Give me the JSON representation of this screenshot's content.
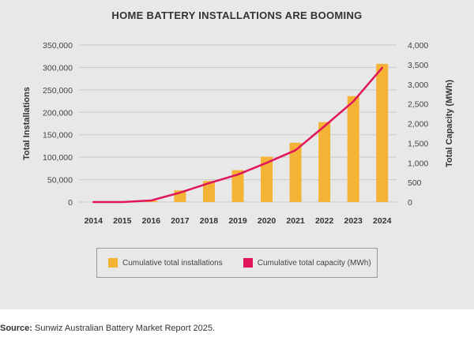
{
  "chart_data": {
    "type": "bar",
    "title": "HOME BATTERY INSTALLATIONS ARE BOOMING",
    "categories": [
      "2014",
      "2015",
      "2016",
      "2017",
      "2018",
      "2019",
      "2020",
      "2021",
      "2022",
      "2023",
      "2024"
    ],
    "ylabel": "Total Installations",
    "y2label": "Total Capacity (MWh)",
    "ylim": [
      0,
      350000
    ],
    "y2lim": [
      0,
      4000
    ],
    "yticks": [
      "0",
      "50,000",
      "100,000",
      "150,000",
      "200,000",
      "250,000",
      "300,000",
      "350,000"
    ],
    "y2ticks": [
      "0",
      "500",
      "1,000",
      "1,500",
      "2,000",
      "2,500",
      "3,000",
      "3,500",
      "4,000"
    ],
    "grid": "horizontal",
    "legend_position": "bottom",
    "series": [
      {
        "name": "Cumulative total installations",
        "type": "bar",
        "axis": "left",
        "color": "#f5b335",
        "values": [
          0,
          0,
          3000,
          26000,
          47000,
          71000,
          101000,
          132000,
          178000,
          236000,
          308000
        ]
      },
      {
        "name": "Cumulative total capacity (MWh)",
        "type": "line",
        "axis": "right",
        "color": "#e0155c",
        "values": [
          0,
          0,
          40,
          240,
          480,
          700,
          1000,
          1320,
          1930,
          2560,
          3420
        ]
      }
    ]
  },
  "source": {
    "label": "Source:",
    "text": " Sunwiz Australian Battery Market Report 2025."
  }
}
